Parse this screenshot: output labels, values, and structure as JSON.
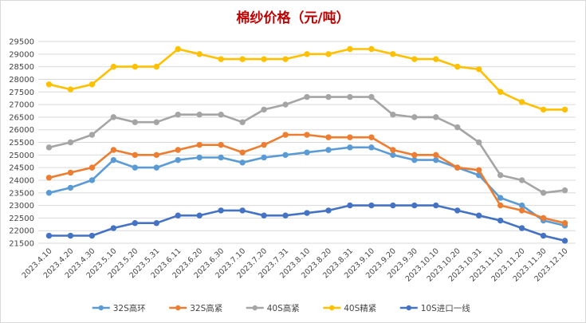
{
  "chart_data": {
    "type": "line",
    "title": "棉纱价格（元/吨）",
    "xlabel": "",
    "ylabel": "",
    "ylim": [
      21500,
      29500
    ],
    "ytick_step": 500,
    "grid": true,
    "legend_position": "bottom",
    "categories": [
      "2023.4.10",
      "2023.4.20",
      "2023.4.30",
      "2023.5.10",
      "2023.5.20",
      "2023.5.31",
      "2023.6.11",
      "2023.6.20",
      "2023.6.30",
      "2023.7.10",
      "2023.7.20",
      "2023.7.31",
      "2023.8.10",
      "2023.8.20",
      "2023.8.31",
      "2023.9.10",
      "2023.9.20",
      "2023.9.30",
      "2023.10.10",
      "2023.10.20",
      "2023.10.31",
      "2023.11.10",
      "2023.11.20",
      "2023.11.30",
      "2023.12.10"
    ],
    "series": [
      {
        "name": "32S高环",
        "color": "#5b9bd5",
        "values": [
          23500,
          23700,
          24000,
          24800,
          24500,
          24500,
          24800,
          24900,
          24900,
          24700,
          24900,
          25000,
          25100,
          25200,
          25300,
          25300,
          25000,
          24800,
          24800,
          24500,
          24200,
          23300,
          23000,
          22400,
          22200
        ]
      },
      {
        "name": "32S高紧",
        "color": "#ed7d31",
        "values": [
          24100,
          24300,
          24500,
          25200,
          25000,
          25000,
          25200,
          25400,
          25400,
          25100,
          25400,
          25800,
          25800,
          25700,
          25700,
          25700,
          25200,
          25000,
          25000,
          24500,
          24400,
          23000,
          22800,
          22500,
          22300
        ]
      },
      {
        "name": "40S高紧",
        "color": "#a5a5a5",
        "values": [
          25300,
          25500,
          25800,
          26500,
          26300,
          26300,
          26600,
          26600,
          26600,
          26300,
          26800,
          27000,
          27300,
          27300,
          27300,
          27300,
          26600,
          26500,
          26500,
          26100,
          25500,
          24200,
          24000,
          23500,
          23600
        ]
      },
      {
        "name": "40S精紧",
        "color": "#ffc000",
        "values": [
          27800,
          27600,
          27800,
          28500,
          28500,
          28500,
          29200,
          29000,
          28800,
          28800,
          28800,
          28800,
          29000,
          29000,
          29200,
          29200,
          29000,
          28800,
          28800,
          28500,
          28400,
          27500,
          27100,
          26800,
          26800
        ]
      },
      {
        "name": "10S进口一线",
        "color": "#4472c4",
        "values": [
          21800,
          21800,
          21800,
          22100,
          22300,
          22300,
          22600,
          22600,
          22800,
          22800,
          22600,
          22600,
          22700,
          22800,
          23000,
          23000,
          23000,
          23000,
          23000,
          22800,
          22600,
          22400,
          22100,
          21800,
          21600
        ]
      }
    ]
  }
}
